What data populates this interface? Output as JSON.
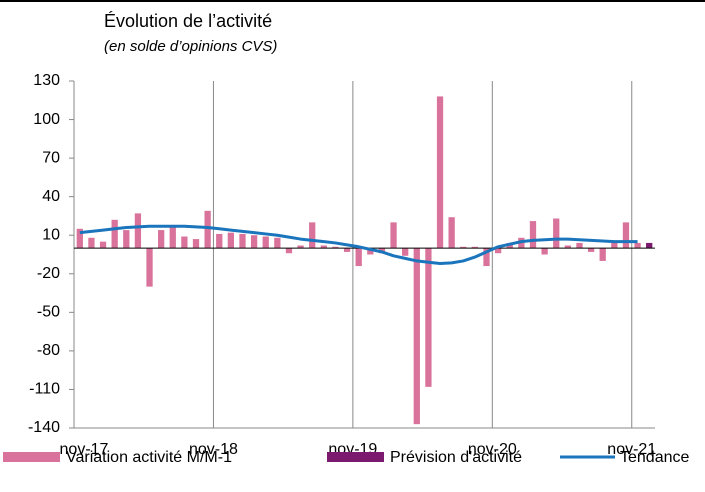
{
  "chart_data": {
    "type": "bar",
    "title": "Évolution de l’activité",
    "subtitle": "(en solde d’opinions CVS)",
    "categories": [
      "nov-17",
      null,
      null,
      null,
      null,
      null,
      null,
      null,
      null,
      null,
      null,
      null,
      "nov-18",
      null,
      null,
      null,
      null,
      null,
      null,
      null,
      null,
      null,
      null,
      null,
      "nov-19",
      null,
      null,
      null,
      null,
      null,
      null,
      null,
      null,
      null,
      null,
      null,
      "nov-20",
      null,
      null,
      null,
      null,
      null,
      null,
      null,
      null,
      null,
      null,
      null,
      "nov-21",
      null
    ],
    "series": [
      {
        "name": "Variation activité M/M-1",
        "color": "#d9739b",
        "kind": "bar",
        "values": [
          15,
          8,
          5,
          22,
          14,
          27,
          -30,
          14,
          16,
          9,
          7,
          29,
          11,
          12,
          11,
          10,
          9,
          8,
          -4,
          2,
          20,
          2,
          1,
          -3,
          -14,
          -5,
          -4,
          20,
          -6,
          -137,
          -108,
          118,
          24,
          1,
          1,
          -14,
          -4,
          4,
          8,
          21,
          -5,
          23,
          2,
          4,
          -3,
          -10,
          5,
          20,
          4,
          null
        ]
      },
      {
        "name": "Prévision d'activité",
        "color": "#7b1a6e",
        "kind": "bar",
        "values": [
          null,
          null,
          null,
          null,
          null,
          null,
          null,
          null,
          null,
          null,
          null,
          null,
          null,
          null,
          null,
          null,
          null,
          null,
          null,
          null,
          null,
          null,
          null,
          null,
          null,
          null,
          null,
          null,
          null,
          null,
          null,
          null,
          null,
          null,
          null,
          null,
          null,
          null,
          null,
          null,
          null,
          null,
          null,
          null,
          null,
          null,
          null,
          null,
          null,
          4
        ]
      },
      {
        "name": "Tendance",
        "color": "#1a75bc",
        "kind": "line",
        "values": [
          12,
          13,
          14,
          15,
          16,
          16.5,
          17,
          17,
          17,
          17,
          16.5,
          16,
          15,
          14,
          13,
          12,
          11,
          10,
          8.5,
          7,
          6,
          5,
          4,
          2.5,
          1,
          -1,
          -3,
          -6,
          -8,
          -10,
          -11,
          -12,
          -11.5,
          -10,
          -7,
          -3,
          1,
          3,
          5,
          6,
          6.5,
          7,
          7,
          6.5,
          6,
          5.5,
          5,
          5,
          5,
          null
        ]
      }
    ],
    "ylim": [
      -140,
      130
    ],
    "yticks": [
      -140,
      -110,
      -80,
      -50,
      -20,
      10,
      40,
      70,
      100,
      130
    ],
    "grid": true
  }
}
